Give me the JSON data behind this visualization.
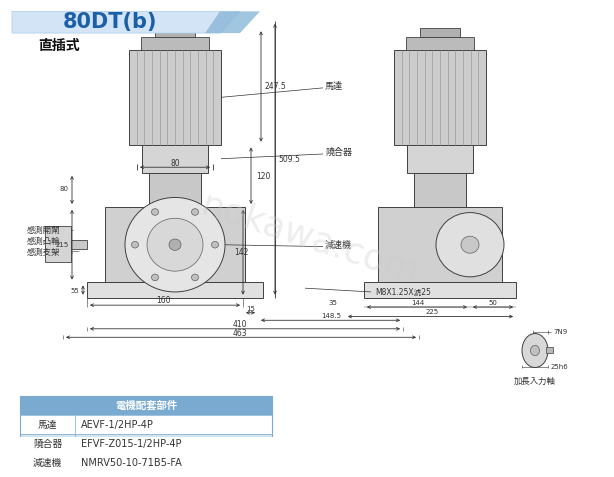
{
  "title": "80DT(b)",
  "subtitle": "直插式",
  "bg_color": "#ffffff",
  "header_bg": "#d4e4f7",
  "header_text_color": "#1a5fa8",
  "table_title": "電機配套部件",
  "table_rows": [
    [
      "馬達",
      "AEVF-1/2HP-4P"
    ],
    [
      "隢合器",
      "EFVF-Z015-1/2HP-4P"
    ],
    [
      "減速機",
      "NMRV50-10-71B5-FA"
    ]
  ],
  "table_highlight_rows": [
    1
  ],
  "left_labels": [
    "感測開閘",
    "感測凸輪",
    "感測支架"
  ],
  "right_labels": [
    "馬達",
    "隢合器",
    "減速機"
  ],
  "dim_notes": [
    "M8X1.25X淲25",
    "7N9",
    "25h6",
    "加長入力軸"
  ],
  "watermark": "nokawa.com",
  "dims_front": {
    "w80": "80",
    "w160": "160",
    "w15": "15",
    "w148_5": "148.5",
    "w410": "410",
    "w463": "463",
    "h55": "55",
    "h80a": "80",
    "h215": "215",
    "h80b": "80",
    "h247_5": "247.5",
    "h120": "120",
    "h142": "142",
    "h509_5": "509.5"
  },
  "dims_side": {
    "w35": "35",
    "w50": "50",
    "w144": "144",
    "w225": "225"
  }
}
